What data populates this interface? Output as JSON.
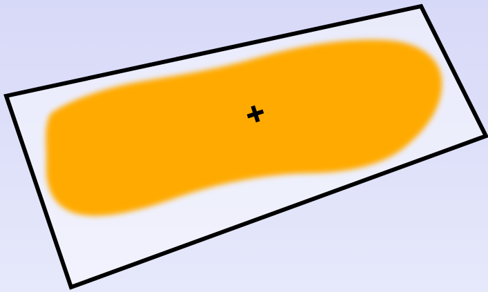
{
  "scene": {
    "background_top": "#d7d9f8",
    "background_bottom": "#e6e8fb",
    "frame_color": "#000000",
    "blob_color": "#ffaa00",
    "marker_icon": "crosshair-plus-icon"
  }
}
